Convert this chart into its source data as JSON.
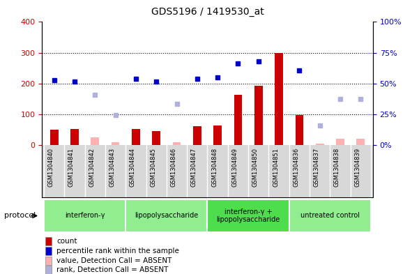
{
  "title": "GDS5196 / 1419530_at",
  "samples": [
    "GSM1304840",
    "GSM1304841",
    "GSM1304842",
    "GSM1304843",
    "GSM1304844",
    "GSM1304845",
    "GSM1304846",
    "GSM1304847",
    "GSM1304848",
    "GSM1304849",
    "GSM1304850",
    "GSM1304851",
    "GSM1304836",
    "GSM1304837",
    "GSM1304838",
    "GSM1304839"
  ],
  "count_values": [
    50,
    52,
    null,
    null,
    52,
    45,
    null,
    62,
    65,
    163,
    193,
    300,
    97,
    null,
    null,
    null
  ],
  "count_absent": [
    null,
    null,
    25,
    9,
    null,
    null,
    9,
    null,
    null,
    null,
    null,
    null,
    null,
    5,
    22,
    22
  ],
  "rank_values": [
    212,
    207,
    null,
    null,
    215,
    207,
    null,
    215,
    220,
    265,
    272,
    null,
    242,
    null,
    null,
    null
  ],
  "rank_absent": [
    null,
    null,
    163,
    97,
    null,
    null,
    133,
    null,
    null,
    null,
    null,
    null,
    null,
    63,
    150,
    150
  ],
  "groups": [
    {
      "label": "interferon-γ",
      "start": 0,
      "end": 3,
      "color": "#90ee90"
    },
    {
      "label": "lipopolysaccharide",
      "start": 4,
      "end": 7,
      "color": "#90ee90"
    },
    {
      "label": "interferon-γ +\nlipopolysaccharide",
      "start": 8,
      "end": 11,
      "color": "#4ddd4d"
    },
    {
      "label": "untreated control",
      "start": 12,
      "end": 15,
      "color": "#90ee90"
    }
  ],
  "ylim_left": [
    0,
    400
  ],
  "ylim_right": [
    0,
    100
  ],
  "left_ticks": [
    0,
    100,
    200,
    300,
    400
  ],
  "right_ticks": [
    0,
    25,
    50,
    75,
    100
  ],
  "right_tick_labels": [
    "0%",
    "25%",
    "50%",
    "75%",
    "100%"
  ],
  "grid_lines": [
    100,
    200,
    300
  ],
  "bar_color": "#cc0000",
  "bar_absent_color": "#ffb0b0",
  "rank_color": "#0000cc",
  "rank_absent_color": "#b0b0dd",
  "left_axis_color": "#cc0000",
  "right_axis_color": "#0000cc",
  "plot_bg_color": "#ffffff",
  "cell_bg_color": "#d8d8d8",
  "legend_items": [
    {
      "color": "#cc0000",
      "label": "count"
    },
    {
      "color": "#0000cc",
      "label": "percentile rank within the sample"
    },
    {
      "color": "#ffb0b0",
      "label": "value, Detection Call = ABSENT"
    },
    {
      "color": "#b0b0dd",
      "label": "rank, Detection Call = ABSENT"
    }
  ]
}
